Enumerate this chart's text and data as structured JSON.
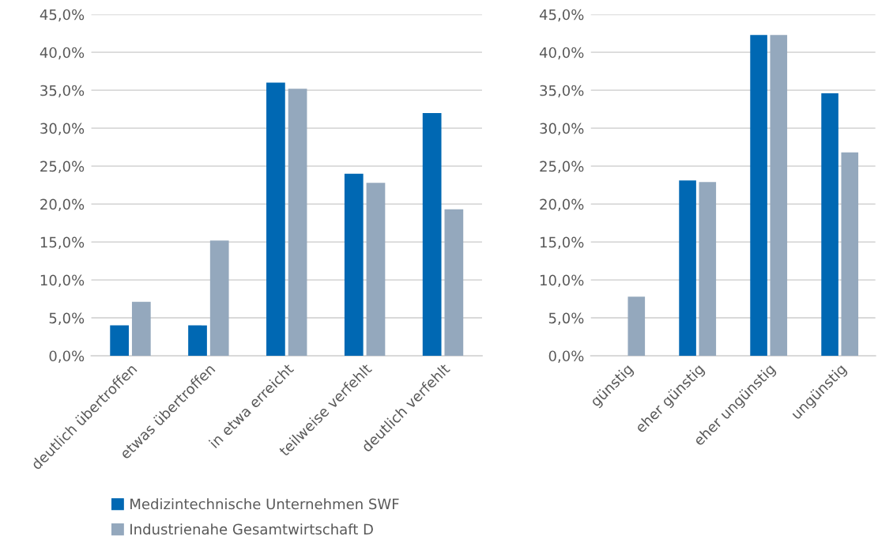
{
  "chart_data": [
    {
      "type": "bar",
      "categories": [
        "deutlich übertroffen",
        "etwas übertroffen",
        "in etwa erreicht",
        "teilweise verfehlt",
        "deutlich verfehlt"
      ],
      "series": [
        {
          "name": "Medizintechnische Unternehmen SWF",
          "color": "#0068b3",
          "values": [
            4.0,
            4.0,
            36.0,
            24.0,
            32.0
          ]
        },
        {
          "name": "Industrienahe Gesamtwirtschaft D",
          "color": "#94a8bd",
          "values": [
            7.1,
            15.2,
            35.2,
            22.8,
            19.3
          ]
        }
      ],
      "ylim": [
        0,
        45
      ],
      "yticks": [
        {
          "value": 0,
          "label": "0,0%"
        },
        {
          "value": 5,
          "label": "5,0%"
        },
        {
          "value": 10,
          "label": "10,0%"
        },
        {
          "value": 15,
          "label": "15,0%"
        },
        {
          "value": 20,
          "label": "20,0%"
        },
        {
          "value": 25,
          "label": "25,0%"
        },
        {
          "value": 30,
          "label": "30,0%"
        },
        {
          "value": 35,
          "label": "35,0%"
        },
        {
          "value": 40,
          "label": "40,0%"
        },
        {
          "value": 45,
          "label": "45,0%"
        }
      ],
      "grid": "y",
      "legend": "bottom"
    },
    {
      "type": "bar",
      "categories": [
        "günstig",
        "eher günstig",
        "eher ungünstig",
        "ungünstig"
      ],
      "series": [
        {
          "color": "#0068b3",
          "values": [
            0,
            23.1,
            42.3,
            34.6
          ]
        },
        {
          "color": "#94a8bd",
          "values": [
            7.8,
            22.9,
            42.3,
            26.8
          ]
        }
      ],
      "ylim": [
        0,
        45
      ],
      "yticks": [
        {
          "value": 0,
          "label": "0,0%"
        },
        {
          "value": 5,
          "label": "5,0%"
        },
        {
          "value": 10,
          "label": "10,0%"
        },
        {
          "value": 15,
          "label": "15,0%"
        },
        {
          "value": 20,
          "label": "20,0%"
        },
        {
          "value": 25,
          "label": "25,0%"
        },
        {
          "value": 30,
          "label": "30,0%"
        },
        {
          "value": 35,
          "label": "35,0%"
        },
        {
          "value": 40,
          "label": "40,0%"
        },
        {
          "value": 45,
          "label": "45,0%"
        }
      ],
      "grid": "y"
    }
  ]
}
